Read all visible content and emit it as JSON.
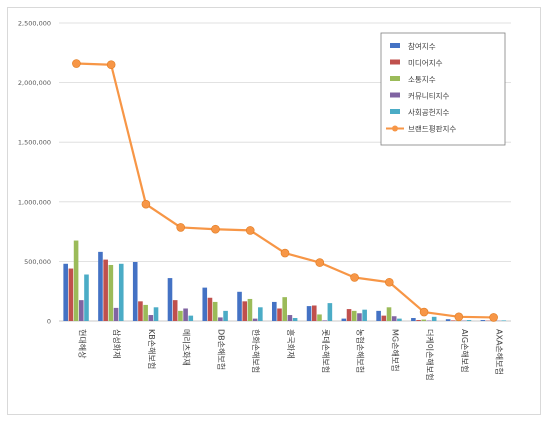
{
  "chart_data": {
    "type": "bar",
    "title": "",
    "xlabel": "",
    "ylabel": "",
    "ylim": [
      0,
      2500000
    ],
    "yticks": [
      0,
      500000,
      1000000,
      1500000,
      2000000,
      2500000
    ],
    "ytick_labels": [
      "0",
      "500,000",
      "1,000,000",
      "1,500,000",
      "2,000,000",
      "2,500,000"
    ],
    "grid": true,
    "legend_position": "top-right",
    "categories": [
      "현대해상",
      "삼성화재",
      "KB손해보험",
      "메리츠화재",
      "DB손해보험",
      "한화손해보험",
      "흥국화재",
      "롯데손해보험",
      "농협손해보험",
      "MG손해보험",
      "더케이손해보험",
      "AIG손해보험",
      "AXA손해보험"
    ],
    "series": [
      {
        "name": "참여지수",
        "color": "#4472c4",
        "values": [
          480000,
          580000,
          495000,
          360000,
          280000,
          245000,
          160000,
          125000,
          20000,
          85000,
          25000,
          15000,
          8000
        ]
      },
      {
        "name": "미디어지수",
        "color": "#c0504d",
        "values": [
          440000,
          515000,
          165000,
          175000,
          195000,
          165000,
          105000,
          130000,
          100000,
          45000,
          8000,
          5000,
          3000
        ]
      },
      {
        "name": "소통지수",
        "color": "#9bbb59",
        "values": [
          675000,
          470000,
          135000,
          85000,
          160000,
          185000,
          200000,
          55000,
          85000,
          115000,
          12000,
          8000,
          6000
        ]
      },
      {
        "name": "커뮤니티지수",
        "color": "#8064a2",
        "values": [
          175000,
          110000,
          50000,
          105000,
          30000,
          20000,
          50000,
          5000,
          65000,
          40000,
          4000,
          3000,
          2000
        ]
      },
      {
        "name": "사회공헌지수",
        "color": "#4bacc6",
        "values": [
          390000,
          480000,
          115000,
          45000,
          85000,
          115000,
          25000,
          150000,
          95000,
          20000,
          35000,
          8000,
          5000
        ]
      }
    ],
    "line_series": {
      "name": "브랜드평판지수",
      "color": "#f79646",
      "values": [
        2160000,
        2150000,
        980000,
        785000,
        770000,
        760000,
        570000,
        490000,
        365000,
        325000,
        75000,
        35000,
        30000
      ]
    }
  }
}
